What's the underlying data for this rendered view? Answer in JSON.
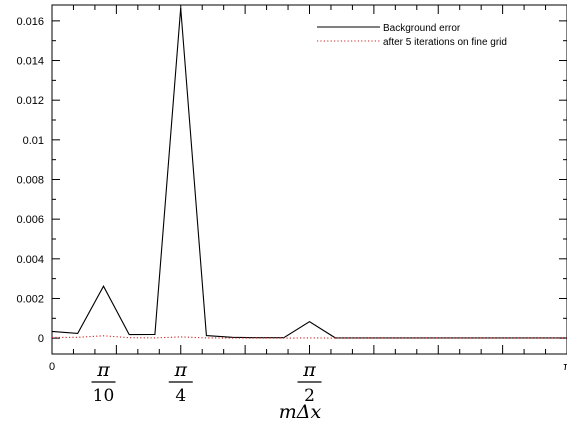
{
  "chart_data": {
    "type": "line",
    "xlabel": "mΔx",
    "x_tick_labels": {
      "left": "0",
      "right": "π"
    },
    "x_special_ticks": [
      {
        "x": 0.3142,
        "numerator": "π",
        "denominator": "10"
      },
      {
        "x": 0.7854,
        "numerator": "π",
        "denominator": "4"
      },
      {
        "x": 1.5708,
        "numerator": "π",
        "denominator": "2"
      }
    ],
    "xlim": [
      0,
      3.1416
    ],
    "ylim": [
      -0.0008,
      0.0168
    ],
    "y_ticks": [
      0,
      0.002,
      0.004,
      0.006,
      0.008,
      0.01,
      0.012,
      0.014,
      0.016
    ],
    "y_tick_labels": [
      "0",
      "0.002",
      "0.004",
      "0.006",
      "0.008",
      "0.01",
      "0.012",
      "0.014",
      "0.016"
    ],
    "legend_position": "top-right",
    "series": [
      {
        "name": "Background error",
        "color": "#000000",
        "style": "solid",
        "x": [
          0.0,
          0.157,
          0.314,
          0.471,
          0.628,
          0.785,
          0.942,
          1.1,
          1.257,
          1.414,
          1.571,
          1.728,
          1.885,
          2.042,
          2.199,
          2.356,
          2.513,
          2.67,
          2.827,
          2.985,
          3.1416
        ],
        "y": [
          0.00034,
          0.00024,
          0.00262,
          0.00018,
          0.00019,
          0.01665,
          0.00013,
          4e-05,
          2e-05,
          2e-05,
          0.00083,
          1e-05,
          1e-05,
          1e-05,
          1e-05,
          1e-05,
          1e-05,
          1e-05,
          1e-05,
          1e-05,
          1e-05
        ]
      },
      {
        "name": "after 5 iterations on fine grid",
        "color": "#cc2222",
        "style": "dotted",
        "x": [
          0.0,
          0.157,
          0.314,
          0.471,
          0.628,
          0.785,
          0.942,
          1.1,
          1.257,
          1.414,
          1.571,
          1.728,
          1.885,
          2.042,
          2.199,
          2.356,
          2.513,
          2.67,
          2.827,
          2.985,
          3.1416
        ],
        "y": [
          3e-05,
          4e-05,
          0.00012,
          2e-05,
          1e-05,
          6e-05,
          1e-05,
          0.0,
          0.0,
          0.0,
          1e-05,
          0.0,
          0.0,
          0.0,
          0.0,
          0.0,
          0.0,
          0.0,
          0.0,
          0.0,
          0.0
        ]
      }
    ]
  }
}
